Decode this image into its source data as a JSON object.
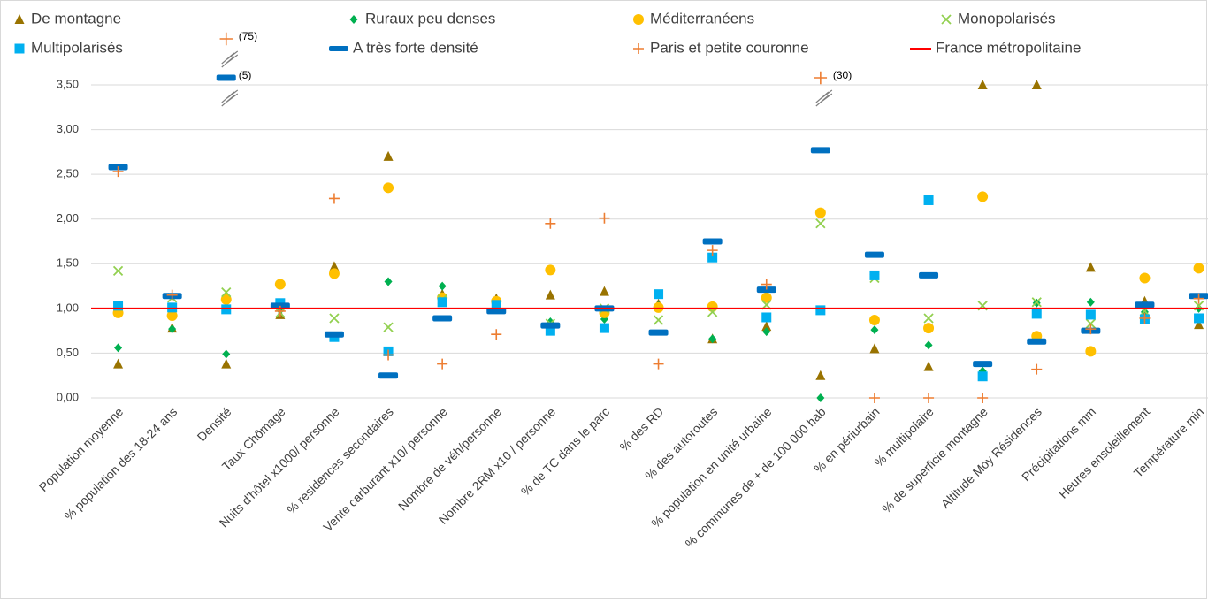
{
  "chart_data": {
    "type": "scatter",
    "categories": [
      "Population moyenne",
      "% population des 18-24 ans",
      "Densité",
      "Taux Chômage",
      "Nuits d'hôtel x1000/ personne",
      "% résidences secondaires",
      "Vente carburant x10/ personne",
      "Nombre de véh/personne",
      "Nombre 2RM x10 / personne",
      "% de TC dans le parc",
      "% des RD",
      "% des autoroutes",
      "% population en unité urbaine",
      "% communes de +  de 100 000 hab",
      "% en périurbain",
      "% multipolaire",
      "% de superficie montagne",
      "Altitude Moy Résidences",
      "Précipitations mm",
      "Heures ensoleillement",
      "Température min"
    ],
    "ylim": [
      0,
      3.5
    ],
    "yticks": [
      {
        "value": 0,
        "label": "0,00"
      },
      {
        "value": 0.5,
        "label": "0,50"
      },
      {
        "value": 1,
        "label": "1,00"
      },
      {
        "value": 1.5,
        "label": "1,50"
      },
      {
        "value": 2,
        "label": "2,00"
      },
      {
        "value": 2.5,
        "label": "2,50"
      },
      {
        "value": 3,
        "label": "3,00"
      },
      {
        "value": 3.5,
        "label": "3,50"
      }
    ],
    "grid": true,
    "series": [
      {
        "name": "De montagne",
        "marker": "triangle",
        "color": "#997300",
        "values": [
          0.38,
          0.78,
          0.38,
          0.93,
          1.47,
          2.7,
          1.16,
          1.11,
          1.15,
          1.19,
          1.05,
          0.66,
          0.8,
          0.25,
          0.55,
          0.35,
          3.5,
          3.5,
          1.46,
          1.08,
          0.82
        ]
      },
      {
        "name": "Ruraux peu denses",
        "marker": "diamond",
        "color": "#00b050",
        "values": [
          0.56,
          0.77,
          0.49,
          0.98,
          0.69,
          1.3,
          1.25,
          1.05,
          0.85,
          0.88,
          1.03,
          0.66,
          0.74,
          0.0,
          0.76,
          0.59,
          0.3,
          1.06,
          1.07,
          0.96,
          1.0
        ]
      },
      {
        "name": "Méditerranéens",
        "marker": "circle",
        "color": "#ffc000",
        "values": [
          0.95,
          0.92,
          1.1,
          1.27,
          1.39,
          2.35,
          1.12,
          1.08,
          1.43,
          0.95,
          1.01,
          1.02,
          1.12,
          2.07,
          0.87,
          0.78,
          2.25,
          0.69,
          0.52,
          1.34,
          1.45
        ]
      },
      {
        "name": "Monopolarisés",
        "marker": "x",
        "color": "#92d050",
        "values": [
          1.42,
          1.12,
          1.18,
          0.95,
          0.89,
          0.79,
          1.1,
          1.01,
          0.83,
          1.0,
          0.87,
          0.96,
          1.04,
          1.95,
          1.34,
          0.89,
          1.03,
          1.07,
          0.83,
          0.97,
          1.03
        ]
      },
      {
        "name": "Multipolarisés",
        "marker": "square",
        "color": "#00b0f0",
        "values": [
          1.03,
          1.01,
          0.99,
          1.06,
          0.68,
          0.52,
          1.07,
          1.04,
          0.75,
          0.78,
          1.16,
          1.57,
          0.9,
          0.98,
          1.37,
          2.21,
          0.24,
          0.94,
          0.93,
          0.88,
          0.89
        ]
      },
      {
        "name": "A très forte densité",
        "marker": "dash",
        "color": "#0070c0",
        "values": [
          2.58,
          1.14,
          5,
          1.03,
          0.71,
          0.25,
          0.89,
          0.97,
          0.81,
          1.0,
          0.73,
          1.75,
          1.21,
          2.77,
          1.6,
          1.37,
          0.38,
          0.63,
          0.75,
          1.04,
          1.14
        ],
        "value_labels": [
          null,
          null,
          "(5)",
          null,
          null,
          null,
          null,
          null,
          null,
          null,
          null,
          null,
          null,
          null,
          null,
          null,
          null,
          null,
          null,
          null,
          null
        ]
      },
      {
        "name": "Paris et petite couronne",
        "marker": "plus",
        "color": "#ed7d31",
        "values": [
          2.53,
          1.15,
          75,
          0.97,
          2.23,
          0.48,
          0.38,
          0.71,
          1.95,
          2.01,
          0.38,
          1.65,
          1.27,
          30,
          0.0,
          0.0,
          0.0,
          0.32,
          0.77,
          0.89,
          1.11
        ],
        "value_labels": [
          null,
          null,
          "(75)",
          null,
          null,
          null,
          null,
          null,
          null,
          null,
          null,
          null,
          null,
          "(30)",
          null,
          null,
          null,
          null,
          null,
          null,
          null
        ]
      },
      {
        "name": "France métropolitaine",
        "marker": "line",
        "color": "#ff0000",
        "values": [
          1,
          1,
          1,
          1,
          1,
          1,
          1,
          1,
          1,
          1,
          1,
          1,
          1,
          1,
          1,
          1,
          1,
          1,
          1,
          1,
          1
        ]
      }
    ]
  }
}
